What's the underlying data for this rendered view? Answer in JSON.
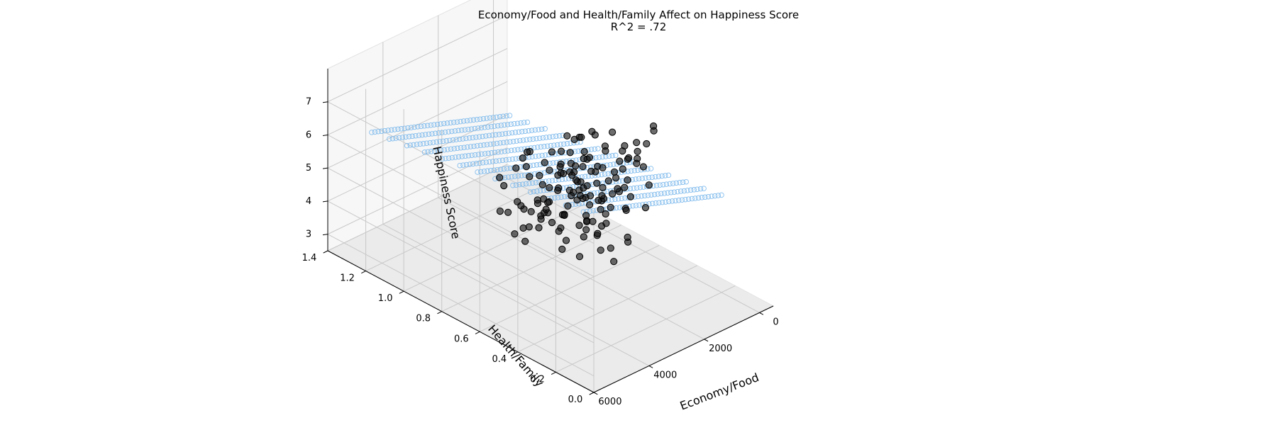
{
  "chart_data": {
    "type": "scatter",
    "title": "Economy/Food and Health/Family Affect on Happiness Score",
    "subtitle": "R^2 = .72",
    "xlabel": "Economy/Food",
    "ylabel": "Health/Family",
    "zlabel": "Happiness Score",
    "x_ticks": [
      "0",
      "2000",
      "4000",
      "6000"
    ],
    "y_ticks": [
      "0.0",
      "0.2",
      "0.4",
      "0.6",
      "0.8",
      "1.0",
      "1.2",
      "1.4"
    ],
    "z_ticks": [
      "3",
      "4",
      "5",
      "6",
      "7"
    ],
    "xlim": [
      -500,
      6000
    ],
    "ylim": [
      0.0,
      1.4
    ],
    "zlim": [
      2.5,
      8.0
    ],
    "grid": true,
    "series": [
      {
        "kind": "observed-points",
        "color": "#000000",
        "points": [
          [
            1200,
            0.74,
            4.2
          ],
          [
            1500,
            0.74,
            4.8
          ],
          [
            1800,
            0.73,
            5.5
          ],
          [
            1700,
            0.66,
            5.8
          ],
          [
            1400,
            0.66,
            5.3
          ],
          [
            1000,
            0.68,
            4.6
          ],
          [
            900,
            0.7,
            4.1
          ],
          [
            1300,
            0.76,
            4.4
          ],
          [
            1100,
            0.77,
            5.0
          ],
          [
            1600,
            0.8,
            4.9
          ],
          [
            1500,
            0.84,
            4.3
          ],
          [
            1700,
            0.86,
            3.9
          ],
          [
            1900,
            0.83,
            4.5
          ],
          [
            2100,
            0.8,
            5.2
          ],
          [
            2000,
            0.86,
            3.6
          ],
          [
            1800,
            0.94,
            3.4
          ],
          [
            2200,
            0.92,
            3.7
          ],
          [
            1400,
            0.91,
            3.3
          ],
          [
            2500,
            0.87,
            3.0
          ],
          [
            2300,
            0.94,
            3.9
          ],
          [
            1500,
            0.95,
            3.6
          ],
          [
            1700,
            0.98,
            4.6
          ],
          [
            2100,
            1.04,
            4.0
          ],
          [
            2600,
            0.99,
            4.6
          ],
          [
            2000,
            0.6,
            5.0
          ],
          [
            2300,
            0.56,
            6.4
          ],
          [
            2600,
            0.47,
            5.5
          ],
          [
            2800,
            0.52,
            5.8
          ],
          [
            2400,
            0.62,
            6.0
          ],
          [
            2600,
            0.62,
            5.9
          ],
          [
            3000,
            0.54,
            6.3
          ],
          [
            3300,
            0.45,
            5.9
          ],
          [
            3600,
            0.42,
            6.2
          ],
          [
            2900,
            0.64,
            5.4
          ],
          [
            2500,
            0.68,
            6.3
          ],
          [
            2700,
            0.7,
            6.3
          ],
          [
            3100,
            0.68,
            6.2
          ],
          [
            3400,
            0.62,
            5.3
          ],
          [
            3600,
            0.61,
            5.1
          ],
          [
            3800,
            0.54,
            5.1
          ],
          [
            2200,
            0.68,
            5.0
          ],
          [
            1900,
            0.72,
            5.9
          ],
          [
            2800,
            0.76,
            4.6
          ],
          [
            2500,
            0.76,
            4.3
          ],
          [
            2000,
            0.77,
            5.1
          ],
          [
            2400,
            0.86,
            5.7
          ],
          [
            2100,
            0.74,
            5.3
          ],
          [
            1900,
            0.76,
            3.9
          ],
          [
            2900,
            0.86,
            5.4
          ],
          [
            3200,
            0.79,
            4.6
          ],
          [
            3500,
            0.78,
            3.9
          ],
          [
            3000,
            0.81,
            5.9
          ],
          [
            3200,
            0.9,
            4.1
          ],
          [
            2700,
            0.83,
            5.9
          ],
          [
            2600,
            0.78,
            5.3
          ],
          [
            2200,
            0.66,
            5.0
          ],
          [
            2800,
            0.62,
            4.7
          ],
          [
            3300,
            0.67,
            4.6
          ],
          [
            3000,
            0.61,
            4.4
          ],
          [
            3500,
            0.53,
            4.2
          ],
          [
            3700,
            0.48,
            4.7
          ],
          [
            3400,
            0.36,
            5.1
          ],
          [
            3900,
            0.38,
            4.6
          ],
          [
            4100,
            0.46,
            5.2
          ],
          [
            3700,
            0.34,
            5.7
          ],
          [
            4300,
            0.3,
            5.6
          ],
          [
            4100,
            0.24,
            5.3
          ],
          [
            3900,
            0.2,
            5.0
          ],
          [
            3300,
            0.33,
            5.8
          ],
          [
            3000,
            0.4,
            5.6
          ],
          [
            3500,
            0.5,
            5.6
          ],
          [
            3200,
            0.58,
            6.5
          ],
          [
            3000,
            0.45,
            6.6
          ],
          [
            2700,
            0.46,
            6.6
          ],
          [
            3100,
            0.49,
            6.2
          ],
          [
            2800,
            0.58,
            6.0
          ],
          [
            1600,
            0.68,
            4.0
          ],
          [
            1300,
            0.72,
            3.6
          ],
          [
            1100,
            0.8,
            3.9
          ],
          [
            1000,
            0.68,
            5.2
          ],
          [
            800,
            0.62,
            5.5
          ],
          [
            700,
            0.54,
            6.0
          ],
          [
            900,
            0.48,
            5.8
          ],
          [
            1100,
            0.55,
            6.3
          ],
          [
            1200,
            0.6,
            6.6
          ],
          [
            1400,
            0.56,
            5.6
          ],
          [
            1600,
            0.58,
            6.4
          ],
          [
            1400,
            0.49,
            6.2
          ],
          [
            1800,
            0.46,
            6.7
          ],
          [
            2000,
            0.52,
            6.6
          ],
          [
            1700,
            0.4,
            7.1
          ],
          [
            1200,
            0.42,
            6.8
          ],
          [
            1500,
            0.34,
            7.7
          ],
          [
            1900,
            0.28,
            7.9
          ],
          [
            2400,
            0.34,
            7.1
          ],
          [
            2200,
            0.4,
            6.5
          ],
          [
            2500,
            0.28,
            7.3
          ],
          [
            2800,
            0.24,
            7.4
          ],
          [
            3000,
            0.32,
            6.8
          ],
          [
            3200,
            0.24,
            6.2
          ],
          [
            3400,
            0.28,
            6.6
          ],
          [
            2600,
            0.36,
            6.1
          ],
          [
            2300,
            0.46,
            6.0
          ],
          [
            2000,
            0.42,
            5.8
          ],
          [
            1700,
            0.5,
            5.4
          ],
          [
            2200,
            0.5,
            5.3
          ],
          [
            2500,
            0.42,
            5.4
          ],
          [
            1900,
            0.58,
            5.4
          ],
          [
            2100,
            0.62,
            6.1
          ],
          [
            2900,
            0.28,
            5.9
          ],
          [
            3100,
            0.38,
            5.2
          ],
          [
            2700,
            0.3,
            4.8
          ],
          [
            2300,
            0.36,
            4.6
          ],
          [
            3600,
            0.26,
            5.1
          ],
          [
            3800,
            0.3,
            5.5
          ],
          [
            1300,
            0.64,
            4.6
          ],
          [
            2400,
            0.56,
            4.5
          ],
          [
            2700,
            0.52,
            4.5
          ],
          [
            1600,
            0.78,
            6.1
          ],
          [
            1800,
            0.62,
            6.8
          ],
          [
            2100,
            0.56,
            7.0
          ],
          [
            2600,
            0.57,
            7.1
          ],
          [
            2900,
            0.5,
            7.0
          ],
          [
            2300,
            0.64,
            6.7
          ],
          [
            1500,
            0.72,
            6.2
          ],
          [
            1800,
            0.88,
            4.4
          ],
          [
            3000,
            0.7,
            5.0
          ],
          [
            3400,
            0.4,
            5.9
          ],
          [
            1300,
            0.86,
            4.8
          ],
          [
            1000,
            0.82,
            4.4
          ],
          [
            2500,
            0.96,
            3.6
          ],
          [
            2000,
            0.92,
            4.6
          ],
          [
            3600,
            0.72,
            4.3
          ],
          [
            3800,
            0.66,
            4.6
          ],
          [
            4000,
            0.58,
            4.9
          ],
          [
            3900,
            0.46,
            5.6
          ],
          [
            3500,
            0.44,
            5.2
          ],
          [
            2800,
            0.4,
            5.1
          ],
          [
            2200,
            0.28,
            5.7
          ],
          [
            1800,
            0.32,
            6.1
          ],
          [
            1500,
            0.46,
            5.2
          ],
          [
            1200,
            0.52,
            5.4
          ],
          [
            1700,
            0.66,
            5.0
          ],
          [
            2000,
            0.7,
            4.7
          ]
        ]
      },
      {
        "kind": "regression-plane",
        "color": "#7db9ec",
        "equation": "z = 5.62 + 0.00030*x - 0.90*y"
      }
    ]
  }
}
